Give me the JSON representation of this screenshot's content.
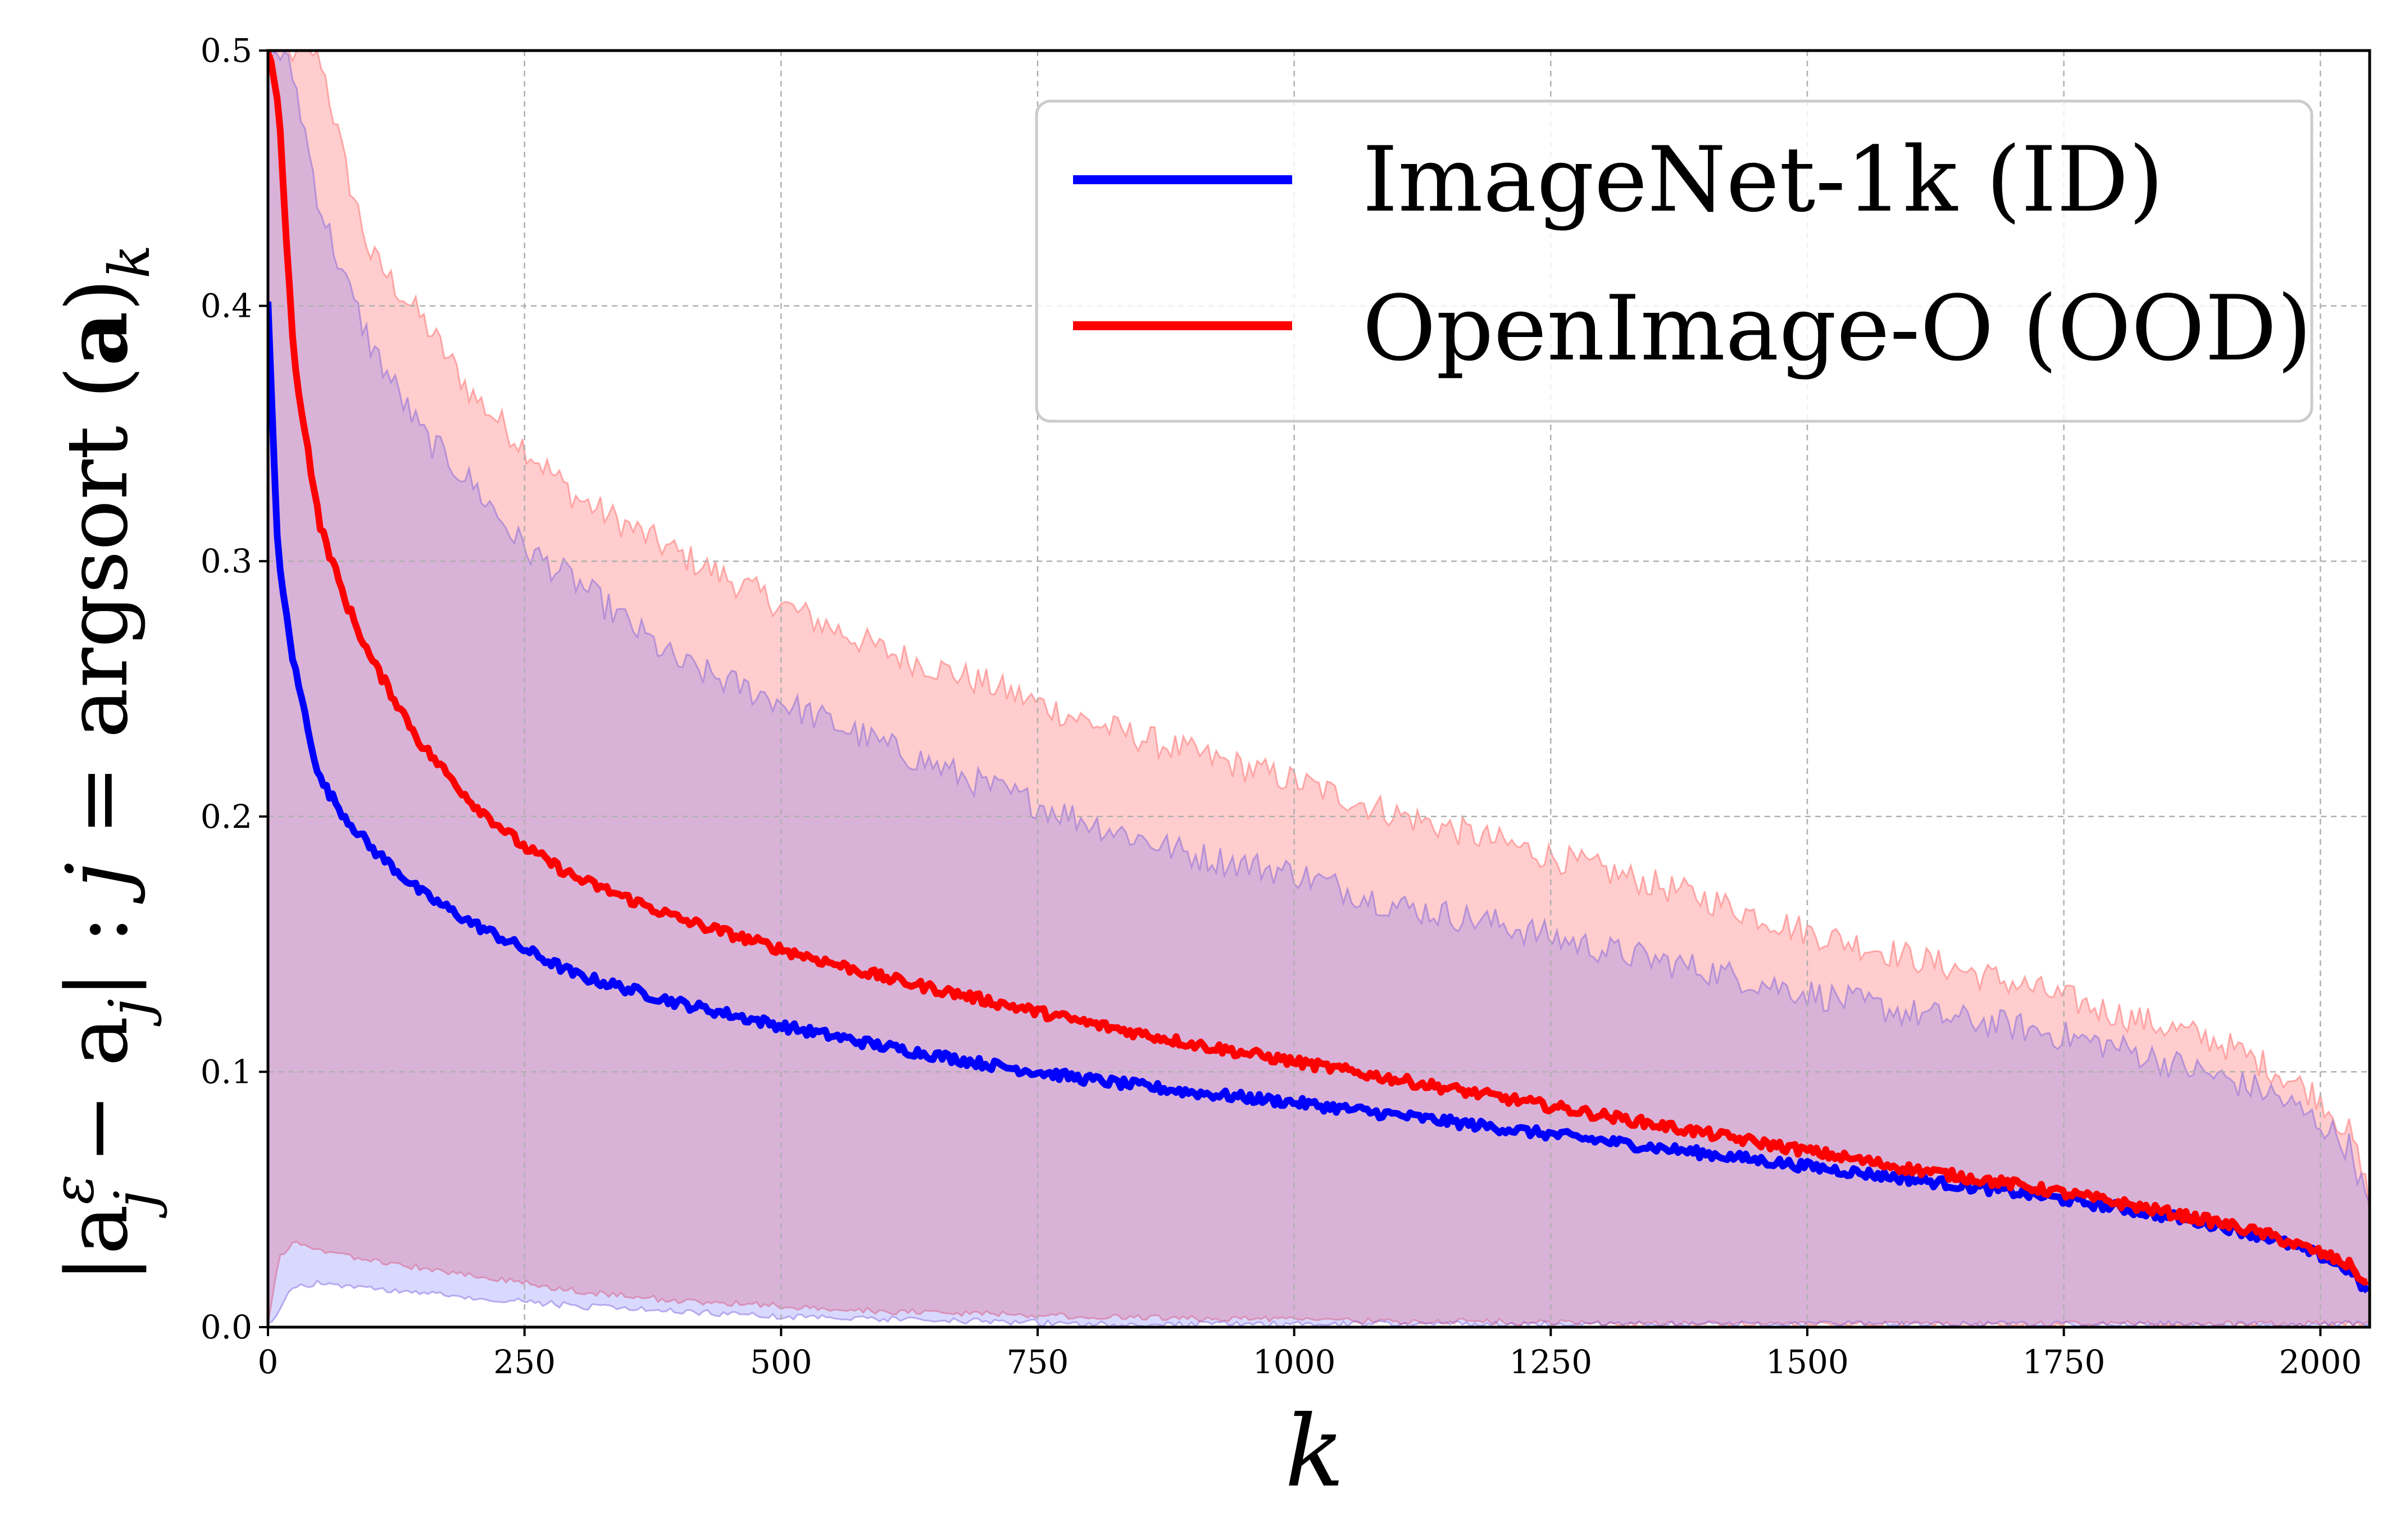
{
  "chart_data": {
    "type": "line",
    "title": "",
    "xlabel": "k",
    "ylabel": "|a_j^ε − a_j| : j = argsort(a)_k",
    "ylabel_parts": {
      "open": "|a",
      "sup": "ε",
      "sub1": "j",
      "minus": " − a",
      "sub2": "j",
      "mid": "| :  ",
      "j": "j",
      "eq": " =  argsort (",
      "bold": "a",
      "close": ")",
      "sub3": "k"
    },
    "xlim": [
      0,
      2048
    ],
    "ylim": [
      0.0,
      0.5
    ],
    "x_ticks": [
      0,
      250,
      500,
      750,
      1000,
      1250,
      1500,
      1750,
      2000
    ],
    "y_ticks": [
      0.0,
      0.1,
      0.2,
      0.3,
      0.4,
      0.5
    ],
    "x_tick_labels": [
      "0",
      "250",
      "500",
      "750",
      "1000",
      "1250",
      "1500",
      "1750",
      "2000"
    ],
    "y_tick_labels": [
      "0.0",
      "0.1",
      "0.2",
      "0.3",
      "0.4",
      "0.5"
    ],
    "grid": true,
    "legend_position": "top-right",
    "x": [
      0,
      10,
      25,
      50,
      75,
      100,
      150,
      200,
      250,
      300,
      400,
      500,
      600,
      700,
      800,
      900,
      1000,
      1100,
      1200,
      1300,
      1400,
      1500,
      1600,
      1700,
      1800,
      1900,
      1950,
      2000,
      2030,
      2048
    ],
    "series": [
      {
        "name": "ImageNet-1k (ID)",
        "color": "#0000ff",
        "values": [
          0.4,
          0.3,
          0.26,
          0.215,
          0.2,
          0.188,
          0.17,
          0.158,
          0.148,
          0.138,
          0.127,
          0.118,
          0.11,
          0.103,
          0.097,
          0.092,
          0.088,
          0.083,
          0.078,
          0.073,
          0.068,
          0.063,
          0.058,
          0.053,
          0.047,
          0.04,
          0.035,
          0.028,
          0.022,
          0.012
        ],
        "band_upper": [
          0.5,
          0.5,
          0.49,
          0.44,
          0.41,
          0.385,
          0.35,
          0.33,
          0.305,
          0.292,
          0.26,
          0.245,
          0.228,
          0.212,
          0.198,
          0.185,
          0.178,
          0.165,
          0.158,
          0.148,
          0.14,
          0.131,
          0.123,
          0.118,
          0.11,
          0.098,
          0.092,
          0.08,
          0.07,
          0.045
        ],
        "band_lower": [
          0.0,
          0.005,
          0.015,
          0.016,
          0.015,
          0.014,
          0.012,
          0.01,
          0.009,
          0.007,
          0.005,
          0.003,
          0.002,
          0.001,
          0.0,
          0.0,
          0.0,
          0.0,
          0.0,
          0.0,
          0.0,
          0.0,
          0.0,
          0.0,
          0.0,
          0.0,
          0.0,
          0.0,
          0.0,
          0.0
        ]
      },
      {
        "name": "OpenImage-O (OOD)",
        "color": "#ff0000",
        "values": [
          0.5,
          0.48,
          0.38,
          0.315,
          0.285,
          0.262,
          0.228,
          0.205,
          0.188,
          0.176,
          0.16,
          0.148,
          0.137,
          0.128,
          0.119,
          0.111,
          0.104,
          0.097,
          0.09,
          0.083,
          0.076,
          0.069,
          0.062,
          0.056,
          0.049,
          0.041,
          0.036,
          0.029,
          0.024,
          0.015
        ],
        "band_upper": [
          0.5,
          0.5,
          0.5,
          0.5,
          0.455,
          0.42,
          0.395,
          0.365,
          0.345,
          0.325,
          0.303,
          0.283,
          0.265,
          0.252,
          0.237,
          0.225,
          0.214,
          0.201,
          0.19,
          0.179,
          0.168,
          0.155,
          0.145,
          0.135,
          0.123,
          0.112,
          0.102,
          0.09,
          0.075,
          0.05
        ],
        "band_lower": [
          0.0,
          0.025,
          0.032,
          0.029,
          0.027,
          0.025,
          0.022,
          0.019,
          0.016,
          0.013,
          0.009,
          0.007,
          0.005,
          0.004,
          0.003,
          0.002,
          0.002,
          0.001,
          0.001,
          0.0,
          0.0,
          0.0,
          0.0,
          0.0,
          0.0,
          0.0,
          0.0,
          0.0,
          0.0,
          0.0
        ]
      }
    ]
  }
}
